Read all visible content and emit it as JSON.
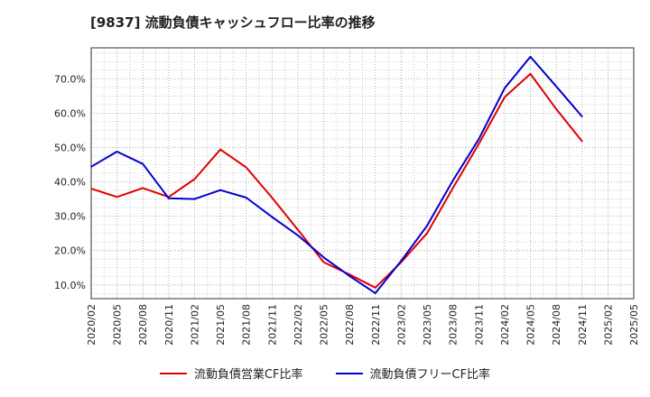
{
  "title": "[9837]  流動負債キャッシュフロー比率の推移",
  "chart_data": {
    "type": "line",
    "title": "[9837]  流動負債キャッシュフロー比率の推移",
    "x": [
      "2020/02",
      "2020/05",
      "2020/08",
      "2020/11",
      "2021/02",
      "2021/05",
      "2021/08",
      "2021/11",
      "2022/02",
      "2022/05",
      "2022/08",
      "2022/11",
      "2023/02",
      "2023/05",
      "2023/08",
      "2023/11",
      "2024/02",
      "2024/05",
      "2024/08",
      "2024/11",
      "2025/02",
      "2025/05"
    ],
    "ylim": [
      6,
      79
    ],
    "yticks": [
      10,
      20,
      30,
      40,
      50,
      60,
      70
    ],
    "ytick_labels": [
      "10.0%",
      "20.0%",
      "30.0%",
      "40.0%",
      "50.0%",
      "60.0%",
      "70.0%"
    ],
    "grid": true,
    "legend_position": "bottom",
    "series": [
      {
        "name": "流動負債営業CF比率",
        "color": "#e00000",
        "values": [
          38.0,
          35.6,
          38.2,
          35.6,
          40.8,
          49.4,
          44.2,
          35.4,
          26.0,
          16.6,
          13.0,
          9.2,
          16.6,
          25.0,
          38.2,
          51.0,
          64.6,
          71.4,
          61.2,
          51.8,
          null,
          null
        ]
      },
      {
        "name": "流動負債フリーCF比率",
        "color": "#0000d0",
        "values": [
          44.4,
          48.8,
          45.2,
          35.2,
          35.0,
          37.6,
          35.4,
          29.8,
          24.4,
          18.0,
          12.6,
          7.6,
          17.0,
          27.2,
          40.4,
          52.4,
          67.2,
          76.4,
          67.8,
          59.0,
          null,
          null
        ]
      }
    ]
  }
}
